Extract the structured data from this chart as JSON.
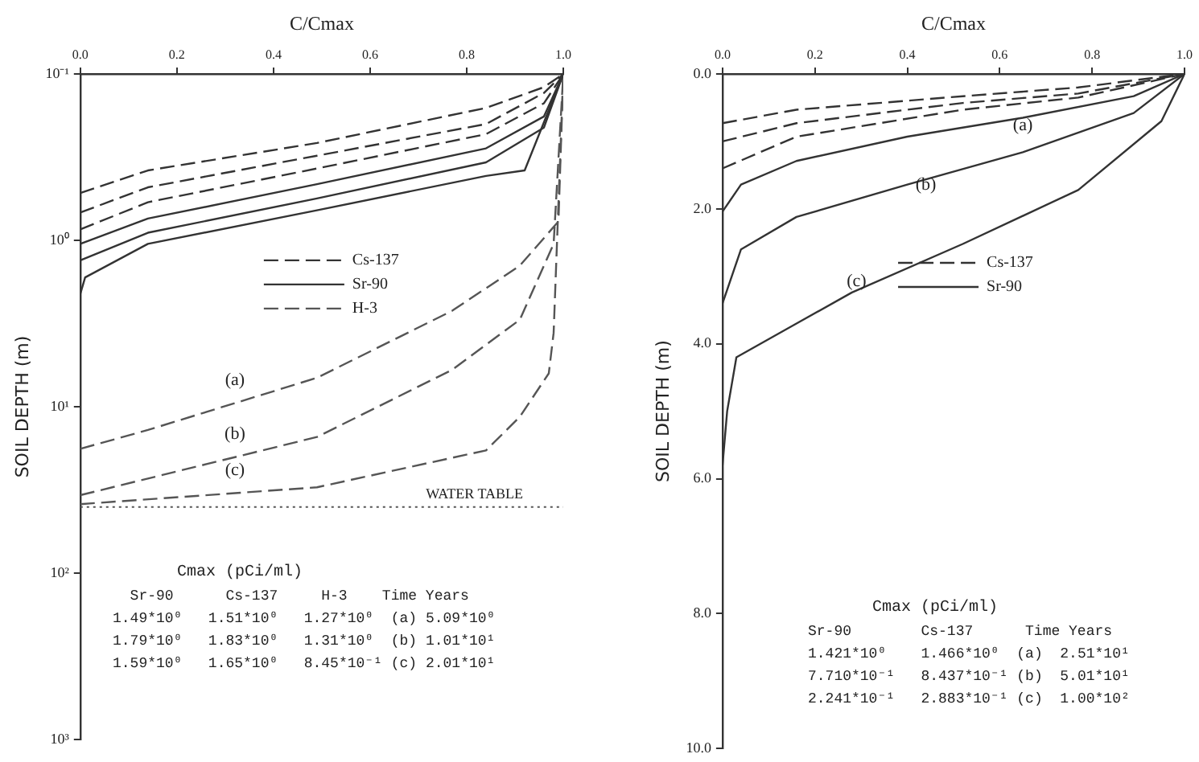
{
  "chart_data": [
    {
      "type": "line",
      "xlabel": "C/Cmax",
      "ylabel": "SOIL DEPTH (m)",
      "log": "y",
      "xlim": [
        0,
        1
      ],
      "xticks": [
        {
          "value": 0,
          "label": "0.0"
        },
        {
          "value": 0.2,
          "label": "0.2"
        },
        {
          "value": 0.4,
          "label": "0.4"
        },
        {
          "value": 0.6,
          "label": "0.6"
        },
        {
          "value": 0.8,
          "label": "0.8"
        },
        {
          "value": 1,
          "label": "1.0"
        }
      ],
      "ylim": [
        1000,
        0.1
      ],
      "yticks": [
        {
          "value": 0.1,
          "label": "10⁻¹"
        },
        {
          "value": 1,
          "label": "10⁰"
        },
        {
          "value": 10,
          "label": "10¹"
        },
        {
          "value": 100,
          "label": "10²"
        },
        {
          "value": 1000,
          "label": "10³"
        }
      ],
      "legend": "center",
      "series": [
        {
          "name": "Cs-137",
          "color": "#333333",
          "line_style": "dashed",
          "x": [
            0,
            0.14,
            0.49,
            0.84,
            0.96,
            1.0
          ],
          "values": [
            0.52,
            0.38,
            0.26,
            0.16,
            0.12,
            0.1
          ]
        },
        {
          "color": "#333333",
          "line_style": "dashed",
          "x": [
            0,
            0.14,
            0.49,
            0.84,
            0.96,
            1.0
          ],
          "values": [
            0.68,
            0.48,
            0.31,
            0.2,
            0.13,
            0.1
          ]
        },
        {
          "color": "#333333",
          "line_style": "dashed",
          "x": [
            0,
            0.14,
            0.49,
            0.84,
            0.96,
            1.0
          ],
          "values": [
            0.86,
            0.59,
            0.37,
            0.23,
            0.15,
            0.1
          ]
        },
        {
          "name": "Sr-90",
          "color": "#333333",
          "line_style": "solid",
          "x": [
            0,
            0.14,
            0.49,
            0.84,
            0.96,
            1.0
          ],
          "values": [
            1.05,
            0.74,
            0.46,
            0.28,
            0.18,
            0.1
          ]
        },
        {
          "color": "#333333",
          "line_style": "solid",
          "x": [
            0,
            0.14,
            0.49,
            0.84,
            0.96,
            1.0
          ],
          "values": [
            1.32,
            0.9,
            0.56,
            0.34,
            0.21,
            0.1
          ]
        },
        {
          "color": "#333333",
          "line_style": "solid",
          "x": [
            0,
            0.01,
            0.14,
            0.49,
            0.84,
            0.92,
            1.0
          ],
          "values": [
            2.1,
            1.67,
            1.05,
            0.66,
            0.41,
            0.38,
            0.1
          ]
        },
        {
          "name": "H-3",
          "color": "#555555",
          "line_style": "dashed",
          "x": [
            0,
            0.14,
            0.49,
            0.77,
            0.91,
            0.99,
            1.0
          ],
          "values": [
            17.9,
            13.8,
            6.7,
            2.65,
            1.42,
            0.77,
            0.1
          ]
        },
        {
          "color": "#555555",
          "line_style": "dashed",
          "x": [
            0,
            0.49,
            0.77,
            0.91,
            0.98,
            1.0
          ],
          "values": [
            34,
            15.2,
            6.0,
            3.0,
            1.05,
            0.1
          ]
        },
        {
          "color": "#555555",
          "line_style": "dashed",
          "x": [
            0,
            0.49,
            0.84,
            0.91,
            0.97,
            0.98,
            1.0
          ],
          "values": [
            38.5,
            30.5,
            18.3,
            11.5,
            6.3,
            3.6,
            0.1
          ]
        }
      ],
      "ref_lines": [
        {
          "axis": "y",
          "value": 40,
          "label": "WATER TABLE",
          "line_style": "dotted",
          "color": "#555555"
        }
      ],
      "annotations": [
        {
          "text": "(a)",
          "x": 0.32,
          "y": 9.5
        },
        {
          "text": "(b)",
          "x": 0.32,
          "y": 20
        },
        {
          "text": "(c)",
          "x": 0.32,
          "y": 33
        },
        "Cmax (pCi/ml)",
        "  Sr-90      Cs-137     H-3    Time Years",
        "1.49*10⁰   1.51*10⁰   1.27*10⁰  (a) 5.09*10⁰",
        "1.79*10⁰   1.83*10⁰   1.31*10⁰  (b) 1.01*10¹",
        "1.59*10⁰   1.65*10⁰   8.45*10⁻¹ (c) 2.01*10¹"
      ]
    },
    {
      "type": "line",
      "xlabel": "C/Cmax",
      "ylabel": "SOIL DEPTH (m)",
      "xlim": [
        0,
        1
      ],
      "xticks": [
        {
          "value": 0,
          "label": "0.0"
        },
        {
          "value": 0.2,
          "label": "0.2"
        },
        {
          "value": 0.4,
          "label": "0.4"
        },
        {
          "value": 0.6,
          "label": "0.6"
        },
        {
          "value": 0.8,
          "label": "0.8"
        },
        {
          "value": 1,
          "label": "1.0"
        }
      ],
      "ylim": [
        10,
        0
      ],
      "yticks": [
        {
          "value": 0,
          "label": "0.0"
        },
        {
          "value": 2,
          "label": "2.0"
        },
        {
          "value": 4,
          "label": "4.0"
        },
        {
          "value": 6,
          "label": "6.0"
        },
        {
          "value": 8,
          "label": "8.0"
        },
        {
          "value": 10,
          "label": "10.0"
        }
      ],
      "legend": "center",
      "series": [
        {
          "color": "#333333",
          "line_style": "dashed",
          "x": [
            0,
            0.16,
            0.52,
            0.77,
            1.0
          ],
          "values": [
            0.73,
            0.53,
            0.33,
            0.2,
            0
          ]
        },
        {
          "color": "#333333",
          "line_style": "dashed",
          "x": [
            0,
            0.16,
            0.52,
            0.77,
            1.0
          ],
          "values": [
            1.0,
            0.73,
            0.43,
            0.29,
            0
          ]
        },
        {
          "name": "Cs-137",
          "color": "#333333",
          "line_style": "dashed",
          "x": [
            0,
            0.16,
            0.52,
            0.77,
            1.0
          ],
          "values": [
            1.4,
            0.93,
            0.53,
            0.35,
            0
          ]
        },
        {
          "name": "Sr-90",
          "color": "#333333",
          "line_style": "solid",
          "x": [
            0,
            0.04,
            0.16,
            0.4,
            0.65,
            0.89,
            1.0
          ],
          "values": [
            2.04,
            1.64,
            1.29,
            0.93,
            0.65,
            0.33,
            0
          ]
        },
        {
          "color": "#333333",
          "line_style": "solid",
          "x": [
            0,
            0.04,
            0.16,
            0.4,
            0.65,
            0.89,
            1.0
          ],
          "values": [
            3.4,
            2.6,
            2.12,
            1.64,
            1.16,
            0.58,
            0
          ]
        },
        {
          "color": "#333333",
          "line_style": "solid",
          "x": [
            0,
            0.01,
            0.03,
            0.16,
            0.28,
            0.52,
            0.77,
            0.95,
            1.0
          ],
          "values": [
            5.8,
            5.0,
            4.2,
            3.7,
            3.24,
            2.52,
            1.72,
            0.7,
            0
          ]
        }
      ],
      "annotations": [
        {
          "text": "(a)",
          "x": 0.65,
          "y": 0.77
        },
        {
          "text": "(b)",
          "x": 0.44,
          "y": 1.65
        },
        {
          "text": "(c)",
          "x": 0.29,
          "y": 3.08
        },
        "Cmax (pCi/ml)",
        "Sr-90        Cs-137      Time Years",
        "1.421*10⁰    1.466*10⁰  (a)  2.51*10¹",
        "7.710*10⁻¹   8.437*10⁻¹ (b)  5.01*10¹",
        "2.241*10⁻¹   2.883*10⁻¹ (c)  1.00*10²"
      ]
    }
  ]
}
